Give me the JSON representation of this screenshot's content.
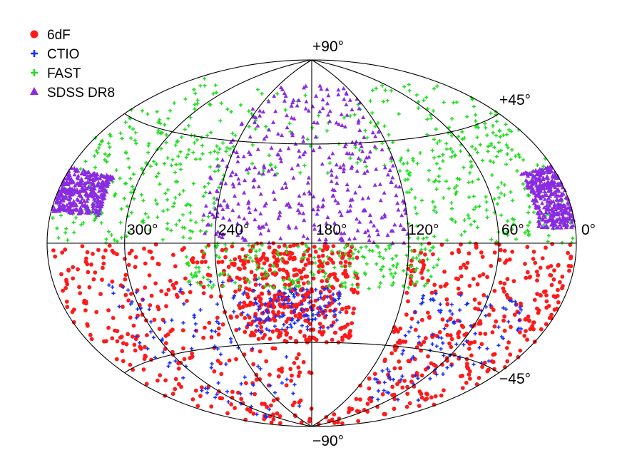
{
  "chart_data": {
    "type": "scatter",
    "projection": "Aitoff-Hammer (full sky)",
    "grid": true,
    "legend_position": "top-left",
    "longitude_tick_labels": [
      "300°",
      "240°",
      "180°",
      "120°",
      "60°",
      "0°"
    ],
    "longitude_tick_values": [
      300,
      240,
      180,
      120,
      60,
      0
    ],
    "latitude_tick_labels": [
      "+90°",
      "+45°",
      "−45°",
      "−90°"
    ],
    "latitude_tick_values": [
      90,
      45,
      -45,
      -90
    ],
    "xlim": [
      0,
      360
    ],
    "ylim": [
      -90,
      90
    ],
    "series": [
      {
        "name": "6dF",
        "color": "#ff1a1a",
        "marker": "circle",
        "regions": [
          {
            "lon": [
              180,
              360
            ],
            "lat": [
              -90,
              0
            ]
          },
          {
            "lon": [
              0,
              120
            ],
            "lat": [
              -90,
              0
            ]
          },
          {
            "lon": [
              150,
              230
            ],
            "lat": [
              -45,
              0
            ]
          }
        ]
      },
      {
        "name": "CTIO",
        "color": "#1a2eff",
        "marker": "plus",
        "regions": [
          {
            "lon": [
              200,
              320
            ],
            "lat": [
              -80,
              -15
            ]
          },
          {
            "lon": [
              20,
              110
            ],
            "lat": [
              -70,
              -20
            ]
          },
          {
            "lon": [
              160,
              220
            ],
            "lat": [
              -40,
              -20
            ]
          }
        ]
      },
      {
        "name": "FAST",
        "color": "#22dd22",
        "marker": "plus",
        "regions": [
          {
            "lon": [
              0,
              360
            ],
            "lat": [
              30,
              70
            ]
          },
          {
            "lon": [
              240,
              360
            ],
            "lat": [
              0,
              45
            ]
          },
          {
            "lon": [
              0,
              120
            ],
            "lat": [
              0,
              45
            ]
          },
          {
            "lon": [
              100,
              260
            ],
            "lat": [
              -20,
              0
            ]
          }
        ]
      },
      {
        "name": "SDSS DR8",
        "color": "#8a2be2",
        "marker": "triangle",
        "regions": [
          {
            "lon": [
              120,
              250
            ],
            "lat": [
              0,
              75
            ]
          },
          {
            "lon": [
              0,
              30
            ],
            "lat": [
              5,
              25
            ]
          },
          {
            "lon": [
              320,
              360
            ],
            "lat": [
              10,
              25
            ]
          }
        ]
      }
    ]
  }
}
